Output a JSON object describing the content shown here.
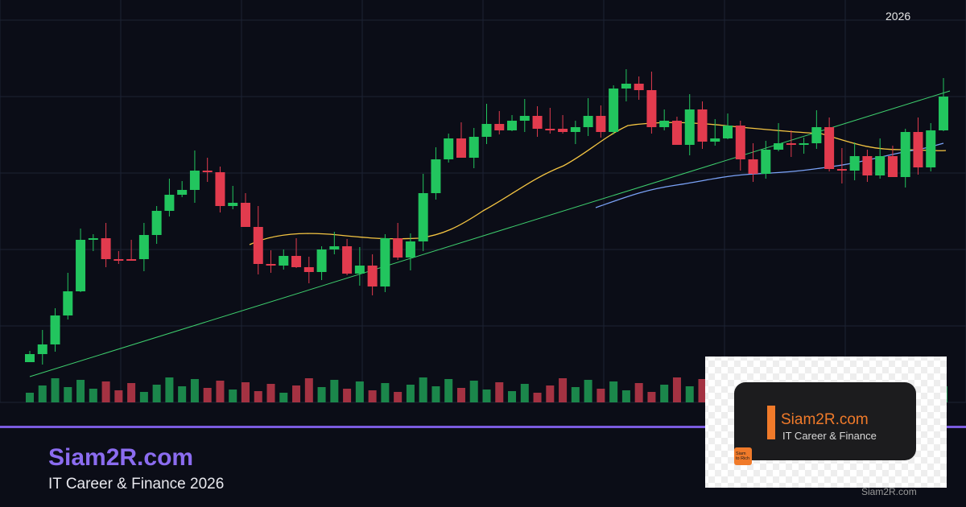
{
  "header": {
    "year": "2026"
  },
  "brand": {
    "title": "Siam2R.com",
    "tagline": "IT Career & Finance 2026"
  },
  "logo_card": {
    "title": "Siam2R.com",
    "subtitle": "IT Career & Finance",
    "icon_lines": [
      "Siam",
      "to Rich"
    ]
  },
  "watermark": "Siam2R.com"
}
